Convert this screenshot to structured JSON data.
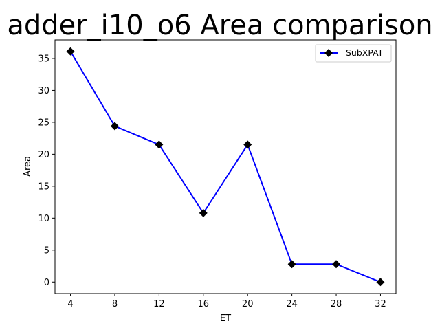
{
  "chart_data": {
    "type": "line",
    "title": "adder_i10_o6 Area comparison",
    "xlabel": "ET",
    "ylabel": "Area",
    "x": [
      4,
      8,
      12,
      16,
      20,
      24,
      28,
      32
    ],
    "xticks": [
      4,
      8,
      12,
      16,
      20,
      24,
      28,
      32
    ],
    "yticks": [
      0,
      5,
      10,
      15,
      20,
      25,
      30,
      35
    ],
    "xlim": [
      2.6,
      33.4
    ],
    "ylim": [
      -1.8,
      37.9
    ],
    "grid": false,
    "legend": "top-right",
    "series": [
      {
        "name": "SubXPAT",
        "values": [
          36.1,
          24.4,
          21.5,
          10.8,
          21.5,
          2.8,
          2.8,
          0.0
        ],
        "line_color": "#0000ff",
        "marker": "diamond",
        "marker_color": "#000000"
      }
    ]
  }
}
